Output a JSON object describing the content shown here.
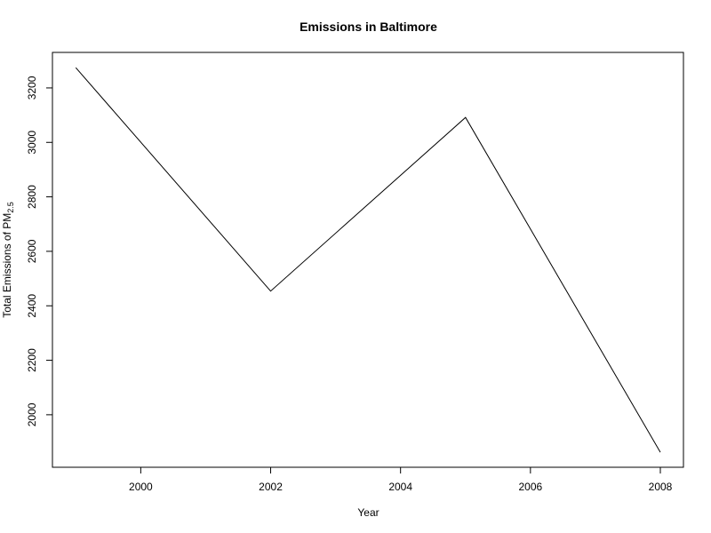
{
  "chart_data": {
    "type": "line",
    "title": "Emissions in Baltimore",
    "xlabel": "Year",
    "ylabel": {
      "main": "Total Emissions of PM",
      "subscript": "2.5"
    },
    "x": [
      1999,
      2002,
      2005,
      2008
    ],
    "series": [
      {
        "values": [
          3274.2,
          2453.9,
          3091.4,
          1862.3
        ]
      }
    ],
    "xlim": [
      1999,
      2008
    ],
    "ylim": [
      1862.3,
      3274.2
    ],
    "xticks": [
      2000,
      2002,
      2004,
      2006,
      2008
    ],
    "yticks": [
      2000,
      2200,
      2400,
      2600,
      2800,
      3000,
      3200
    ],
    "grid": false,
    "line_color": "#000000"
  }
}
